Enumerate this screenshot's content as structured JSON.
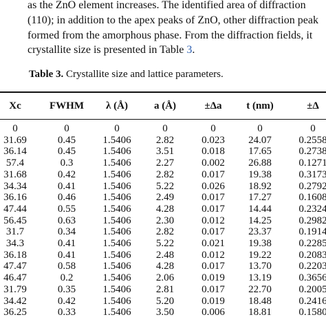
{
  "text": {
    "lines": [
      "as the ZnO element increases. The identified area of diffraction",
      "(110); in addition to the apex peaks of ZnO, other diffraction peak",
      "formed from the amorphous phase. From the diffraction fields, it"
    ],
    "last_line": {
      "before": "crystallite size is presented in Table ",
      "ref": "3",
      "after": "."
    }
  },
  "caption": {
    "label": "Table 3.",
    "text": "Crystallite size and lattice parameters."
  },
  "table": {
    "header": [
      "Xc",
      "FWHM",
      "λ (Å)",
      "a (Å)",
      "±Δa",
      "t (nm)",
      "±Δ"
    ],
    "rows": [
      [
        "0",
        "0",
        "0",
        "0",
        "0",
        "0",
        "0"
      ],
      [
        "31.69",
        "0.45",
        "1.5406",
        "2.82",
        "0.023",
        "24.07",
        "0.2558"
      ],
      [
        "36.14",
        "0.45",
        "1.5406",
        "3.51",
        "0.018",
        "17.65",
        "0.2738"
      ],
      [
        "57.4",
        "0.3",
        "1.5406",
        "2.27",
        "0.002",
        "26.88",
        "0.1271"
      ],
      [
        "31.68",
        "0.42",
        "1.5406",
        "2.82",
        "0.017",
        "19.38",
        "0.3173"
      ],
      [
        "34.34",
        "0.41",
        "1.5406",
        "5.22",
        "0.026",
        "18.92",
        "0.2792"
      ],
      [
        "36.16",
        "0.46",
        "1.5406",
        "2.49",
        "0.017",
        "17.27",
        "0.1608"
      ],
      [
        "47.44",
        "0.55",
        "1.5406",
        "4.28",
        "0.017",
        "14.44",
        "0.2324"
      ],
      [
        "56.45",
        "0.63",
        "1.5406",
        "2.30",
        "0.012",
        "14.25",
        "0.2982"
      ],
      [
        "31.7",
        "0.34",
        "1.5406",
        "2.82",
        "0.017",
        "23.37",
        "0.1914"
      ],
      [
        "34.3",
        "0.41",
        "1.5406",
        "5.22",
        "0.021",
        "19.38",
        "0.2285"
      ],
      [
        "36.18",
        "0.41",
        "1.5406",
        "2.48",
        "0.012",
        "19.22",
        "0.2083"
      ],
      [
        "47.47",
        "0.58",
        "1.5406",
        "4.28",
        "0.017",
        "13.70",
        "0.2203"
      ],
      [
        "46.47",
        "0.2",
        "1.5406",
        "2.06",
        "0.019",
        "13.19",
        "0.3656"
      ],
      [
        "31.79",
        "0.35",
        "1.5406",
        "2.81",
        "0.017",
        "22.70",
        "0.2005"
      ],
      [
        "34.42",
        "0.42",
        "1.5406",
        "5.20",
        "0.019",
        "18.48",
        "0.2416"
      ],
      [
        "36.25",
        "0.33",
        "1.5406",
        "3.50",
        "0.006",
        "18.81",
        "0.1580"
      ]
    ]
  }
}
